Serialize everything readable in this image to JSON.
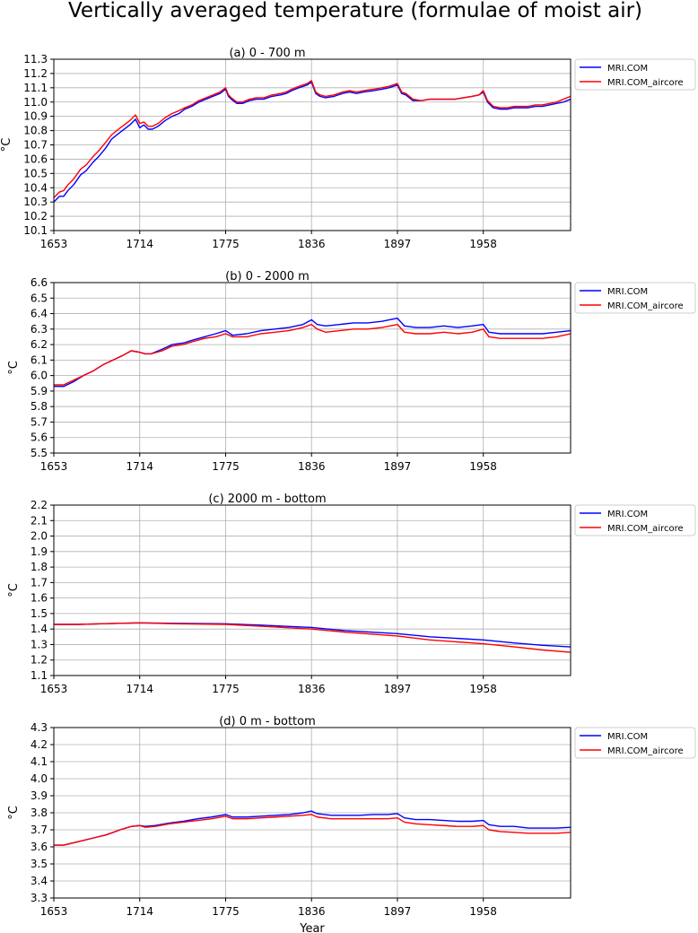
{
  "figure": {
    "title": "Vertically averaged temperature (formulae of moist air)",
    "xlabel": "Year"
  },
  "chart_data": [
    {
      "type": "line",
      "title": "(a) 0 - 700 m",
      "ylabel": "°C",
      "xlabel": "",
      "xlim": [
        1653,
        2020
      ],
      "ylim": [
        10.1,
        11.3
      ],
      "xticks": [
        1653,
        1714,
        1775,
        1836,
        1897,
        1958
      ],
      "yticks": [
        10.1,
        10.2,
        10.3,
        10.4,
        10.5,
        10.6,
        10.7,
        10.8,
        10.9,
        11.0,
        11.1,
        11.2,
        11.3
      ],
      "ytick_labels": [
        "10.1",
        "10.2",
        "10.3",
        "10.4",
        "10.5",
        "10.6",
        "10.7",
        "10.8",
        "10.9",
        "11.0",
        "11.1",
        "11.2",
        "11.3"
      ],
      "grid": true,
      "legend": "outside-right-top",
      "series": [
        {
          "name": "MRI.COM",
          "color": "#0000ff",
          "x": [
            1653,
            1657,
            1660,
            1663,
            1667,
            1672,
            1676,
            1681,
            1685,
            1690,
            1694,
            1699,
            1703,
            1707,
            1711,
            1714,
            1717,
            1720,
            1723,
            1727,
            1732,
            1737,
            1742,
            1746,
            1751,
            1756,
            1761,
            1766,
            1771,
            1775,
            1777,
            1779,
            1783,
            1787,
            1792,
            1797,
            1802,
            1808,
            1814,
            1818,
            1822,
            1827,
            1833,
            1836,
            1839,
            1842,
            1846,
            1852,
            1858,
            1863,
            1868,
            1873,
            1880,
            1886,
            1891,
            1897,
            1900,
            1903,
            1908,
            1914,
            1920,
            1926,
            1932,
            1938,
            1944,
            1950,
            1955,
            1958,
            1961,
            1965,
            1970,
            1975,
            1980,
            1985,
            1990,
            1995,
            2000,
            2005,
            2010,
            2015,
            2020
          ],
          "y": [
            10.3,
            10.34,
            10.34,
            10.38,
            10.42,
            10.49,
            10.52,
            10.58,
            10.62,
            10.68,
            10.74,
            10.78,
            10.81,
            10.84,
            10.88,
            10.82,
            10.84,
            10.81,
            10.81,
            10.83,
            10.87,
            10.9,
            10.92,
            10.95,
            10.97,
            11.0,
            11.02,
            11.04,
            11.06,
            11.09,
            11.04,
            11.02,
            10.99,
            10.99,
            11.01,
            11.02,
            11.02,
            11.04,
            11.05,
            11.06,
            11.08,
            11.1,
            11.12,
            11.14,
            11.06,
            11.04,
            11.03,
            11.04,
            11.06,
            11.07,
            11.06,
            11.07,
            11.08,
            11.09,
            11.1,
            11.12,
            11.06,
            11.05,
            11.01,
            11.01,
            11.02,
            11.02,
            11.02,
            11.02,
            11.03,
            11.04,
            11.05,
            11.07,
            11.0,
            10.96,
            10.95,
            10.95,
            10.96,
            10.96,
            10.96,
            10.97,
            10.97,
            10.98,
            10.99,
            11.0,
            11.02
          ]
        },
        {
          "name": "MRI.COM_aircore",
          "color": "#ff0000",
          "x": [
            1653,
            1657,
            1660,
            1663,
            1667,
            1672,
            1676,
            1681,
            1685,
            1690,
            1694,
            1699,
            1703,
            1707,
            1711,
            1714,
            1717,
            1720,
            1723,
            1727,
            1732,
            1737,
            1742,
            1746,
            1751,
            1756,
            1761,
            1766,
            1771,
            1775,
            1777,
            1779,
            1783,
            1787,
            1792,
            1797,
            1802,
            1808,
            1814,
            1818,
            1822,
            1827,
            1833,
            1836,
            1839,
            1842,
            1846,
            1852,
            1858,
            1863,
            1868,
            1873,
            1880,
            1886,
            1891,
            1897,
            1900,
            1903,
            1908,
            1914,
            1920,
            1926,
            1932,
            1938,
            1944,
            1950,
            1955,
            1958,
            1961,
            1965,
            1970,
            1975,
            1980,
            1985,
            1990,
            1995,
            2000,
            2005,
            2010,
            2015,
            2020
          ],
          "y": [
            10.33,
            10.37,
            10.38,
            10.42,
            10.46,
            10.53,
            10.56,
            10.62,
            10.66,
            10.72,
            10.77,
            10.81,
            10.84,
            10.87,
            10.91,
            10.85,
            10.86,
            10.83,
            10.83,
            10.85,
            10.89,
            10.92,
            10.94,
            10.96,
            10.98,
            11.01,
            11.03,
            11.05,
            11.07,
            11.1,
            11.05,
            11.03,
            11.0,
            11.0,
            11.02,
            11.03,
            11.03,
            11.05,
            11.06,
            11.07,
            11.09,
            11.11,
            11.13,
            11.15,
            11.07,
            11.05,
            11.04,
            11.05,
            11.07,
            11.08,
            11.07,
            11.08,
            11.09,
            11.1,
            11.11,
            11.13,
            11.07,
            11.06,
            11.02,
            11.01,
            11.02,
            11.02,
            11.02,
            11.02,
            11.03,
            11.04,
            11.05,
            11.08,
            11.01,
            10.97,
            10.96,
            10.96,
            10.97,
            10.97,
            10.97,
            10.98,
            10.98,
            10.99,
            11.0,
            11.02,
            11.04
          ]
        }
      ]
    },
    {
      "type": "line",
      "title": "(b) 0 - 2000 m",
      "ylabel": "°C",
      "xlabel": "",
      "xlim": [
        1653,
        2020
      ],
      "ylim": [
        5.5,
        6.6
      ],
      "xticks": [
        1653,
        1714,
        1775,
        1836,
        1897,
        1958
      ],
      "yticks": [
        5.5,
        5.6,
        5.7,
        5.8,
        5.9,
        6.0,
        6.1,
        6.2,
        6.3,
        6.4,
        6.5,
        6.6
      ],
      "ytick_labels": [
        "5.5",
        "5.6",
        "5.7",
        "5.8",
        "5.9",
        "6.0",
        "6.1",
        "6.2",
        "6.3",
        "6.4",
        "6.5",
        "6.6"
      ],
      "grid": true,
      "legend": "outside-right-top",
      "series": [
        {
          "name": "MRI.COM",
          "color": "#0000ff",
          "x": [
            1653,
            1660,
            1667,
            1674,
            1681,
            1688,
            1695,
            1702,
            1708,
            1714,
            1718,
            1722,
            1730,
            1737,
            1745,
            1752,
            1760,
            1768,
            1775,
            1780,
            1790,
            1800,
            1810,
            1820,
            1830,
            1836,
            1840,
            1846,
            1856,
            1866,
            1876,
            1886,
            1897,
            1902,
            1910,
            1920,
            1930,
            1940,
            1950,
            1958,
            1962,
            1970,
            1980,
            1990,
            2000,
            2010,
            2020
          ],
          "y": [
            5.93,
            5.93,
            5.96,
            6.0,
            6.03,
            6.07,
            6.1,
            6.13,
            6.16,
            6.15,
            6.14,
            6.14,
            6.17,
            6.2,
            6.21,
            6.23,
            6.25,
            6.27,
            6.29,
            6.26,
            6.27,
            6.29,
            6.3,
            6.31,
            6.33,
            6.36,
            6.33,
            6.32,
            6.33,
            6.34,
            6.34,
            6.35,
            6.37,
            6.32,
            6.31,
            6.31,
            6.32,
            6.31,
            6.32,
            6.33,
            6.28,
            6.27,
            6.27,
            6.27,
            6.27,
            6.28,
            6.29
          ]
        },
        {
          "name": "MRI.COM_aircore",
          "color": "#ff0000",
          "x": [
            1653,
            1660,
            1667,
            1674,
            1681,
            1688,
            1695,
            1702,
            1708,
            1714,
            1718,
            1722,
            1730,
            1737,
            1745,
            1752,
            1760,
            1768,
            1775,
            1780,
            1790,
            1800,
            1810,
            1820,
            1830,
            1836,
            1840,
            1846,
            1856,
            1866,
            1876,
            1886,
            1897,
            1902,
            1910,
            1920,
            1930,
            1940,
            1950,
            1958,
            1962,
            1970,
            1980,
            1990,
            2000,
            2010,
            2020
          ],
          "y": [
            5.94,
            5.94,
            5.97,
            6.0,
            6.03,
            6.07,
            6.1,
            6.13,
            6.16,
            6.15,
            6.14,
            6.14,
            6.16,
            6.19,
            6.2,
            6.22,
            6.24,
            6.25,
            6.27,
            6.25,
            6.25,
            6.27,
            6.28,
            6.29,
            6.31,
            6.33,
            6.3,
            6.28,
            6.29,
            6.3,
            6.3,
            6.31,
            6.33,
            6.28,
            6.27,
            6.27,
            6.28,
            6.27,
            6.28,
            6.3,
            6.25,
            6.24,
            6.24,
            6.24,
            6.24,
            6.25,
            6.27
          ]
        }
      ]
    },
    {
      "type": "line",
      "title": "(c) 2000 m - bottom",
      "ylabel": "°C",
      "xlabel": "",
      "xlim": [
        1653,
        2020
      ],
      "ylim": [
        1.1,
        2.2
      ],
      "xticks": [
        1653,
        1714,
        1775,
        1836,
        1897,
        1958
      ],
      "yticks": [
        1.1,
        1.2,
        1.3,
        1.4,
        1.5,
        1.6,
        1.7,
        1.8,
        1.9,
        2.0,
        2.1,
        2.2
      ],
      "ytick_labels": [
        "1.1",
        "1.2",
        "1.3",
        "1.4",
        "1.5",
        "1.6",
        "1.7",
        "1.8",
        "1.9",
        "2.0",
        "2.1",
        "2.2"
      ],
      "grid": true,
      "legend": "outside-right-top",
      "series": [
        {
          "name": "MRI.COM",
          "color": "#0000ff",
          "x": [
            1653,
            1670,
            1690,
            1714,
            1740,
            1775,
            1800,
            1836,
            1860,
            1897,
            1920,
            1958,
            1980,
            2000,
            2020
          ],
          "y": [
            1.43,
            1.43,
            1.435,
            1.44,
            1.437,
            1.434,
            1.425,
            1.41,
            1.39,
            1.37,
            1.35,
            1.33,
            1.31,
            1.295,
            1.285
          ]
        },
        {
          "name": "MRI.COM_aircore",
          "color": "#ff0000",
          "x": [
            1653,
            1670,
            1690,
            1714,
            1740,
            1775,
            1800,
            1836,
            1860,
            1897,
            1920,
            1958,
            1980,
            2000,
            2020
          ],
          "y": [
            1.43,
            1.43,
            1.435,
            1.44,
            1.434,
            1.43,
            1.418,
            1.4,
            1.38,
            1.355,
            1.33,
            1.305,
            1.285,
            1.265,
            1.25
          ]
        }
      ]
    },
    {
      "type": "line",
      "title": "(d) 0 m - bottom",
      "ylabel": "°C",
      "xlabel": "Year",
      "xlim": [
        1653,
        2020
      ],
      "ylim": [
        3.3,
        4.3
      ],
      "xticks": [
        1653,
        1714,
        1775,
        1836,
        1897,
        1958
      ],
      "yticks": [
        3.3,
        3.4,
        3.5,
        3.6,
        3.7,
        3.8,
        3.9,
        4.0,
        4.1,
        4.2,
        4.3
      ],
      "ytick_labels": [
        "3.3",
        "3.4",
        "3.5",
        "3.6",
        "3.7",
        "3.8",
        "3.9",
        "4.0",
        "4.1",
        "4.2",
        "4.3"
      ],
      "grid": true,
      "legend": "outside-right-top",
      "series": [
        {
          "name": "MRI.COM",
          "color": "#0000ff",
          "x": [
            1653,
            1660,
            1670,
            1680,
            1690,
            1700,
            1708,
            1714,
            1718,
            1725,
            1735,
            1745,
            1755,
            1765,
            1775,
            1780,
            1790,
            1800,
            1810,
            1820,
            1830,
            1836,
            1840,
            1850,
            1860,
            1870,
            1880,
            1890,
            1897,
            1902,
            1910,
            1920,
            1930,
            1940,
            1950,
            1958,
            1962,
            1970,
            1980,
            1990,
            2000,
            2010,
            2020
          ],
          "y": [
            3.61,
            3.61,
            3.63,
            3.65,
            3.67,
            3.7,
            3.72,
            3.725,
            3.72,
            3.725,
            3.74,
            3.75,
            3.765,
            3.775,
            3.79,
            3.775,
            3.775,
            3.78,
            3.785,
            3.79,
            3.8,
            3.81,
            3.795,
            3.785,
            3.785,
            3.785,
            3.79,
            3.79,
            3.795,
            3.77,
            3.76,
            3.76,
            3.755,
            3.75,
            3.75,
            3.755,
            3.73,
            3.72,
            3.72,
            3.71,
            3.71,
            3.71,
            3.715
          ]
        },
        {
          "name": "MRI.COM_aircore",
          "color": "#ff0000",
          "x": [
            1653,
            1660,
            1670,
            1680,
            1690,
            1700,
            1708,
            1714,
            1718,
            1725,
            1735,
            1745,
            1755,
            1765,
            1775,
            1780,
            1790,
            1800,
            1810,
            1820,
            1830,
            1836,
            1840,
            1850,
            1860,
            1870,
            1880,
            1890,
            1897,
            1902,
            1910,
            1920,
            1930,
            1940,
            1950,
            1958,
            1962,
            1970,
            1980,
            1990,
            2000,
            2010,
            2020
          ],
          "y": [
            3.61,
            3.61,
            3.63,
            3.65,
            3.67,
            3.7,
            3.72,
            3.725,
            3.715,
            3.72,
            3.735,
            3.745,
            3.755,
            3.765,
            3.78,
            3.765,
            3.765,
            3.77,
            3.775,
            3.78,
            3.785,
            3.79,
            3.775,
            3.765,
            3.765,
            3.765,
            3.765,
            3.765,
            3.77,
            3.745,
            3.735,
            3.73,
            3.725,
            3.72,
            3.72,
            3.725,
            3.7,
            3.69,
            3.685,
            3.68,
            3.68,
            3.68,
            3.685
          ]
        }
      ]
    }
  ]
}
